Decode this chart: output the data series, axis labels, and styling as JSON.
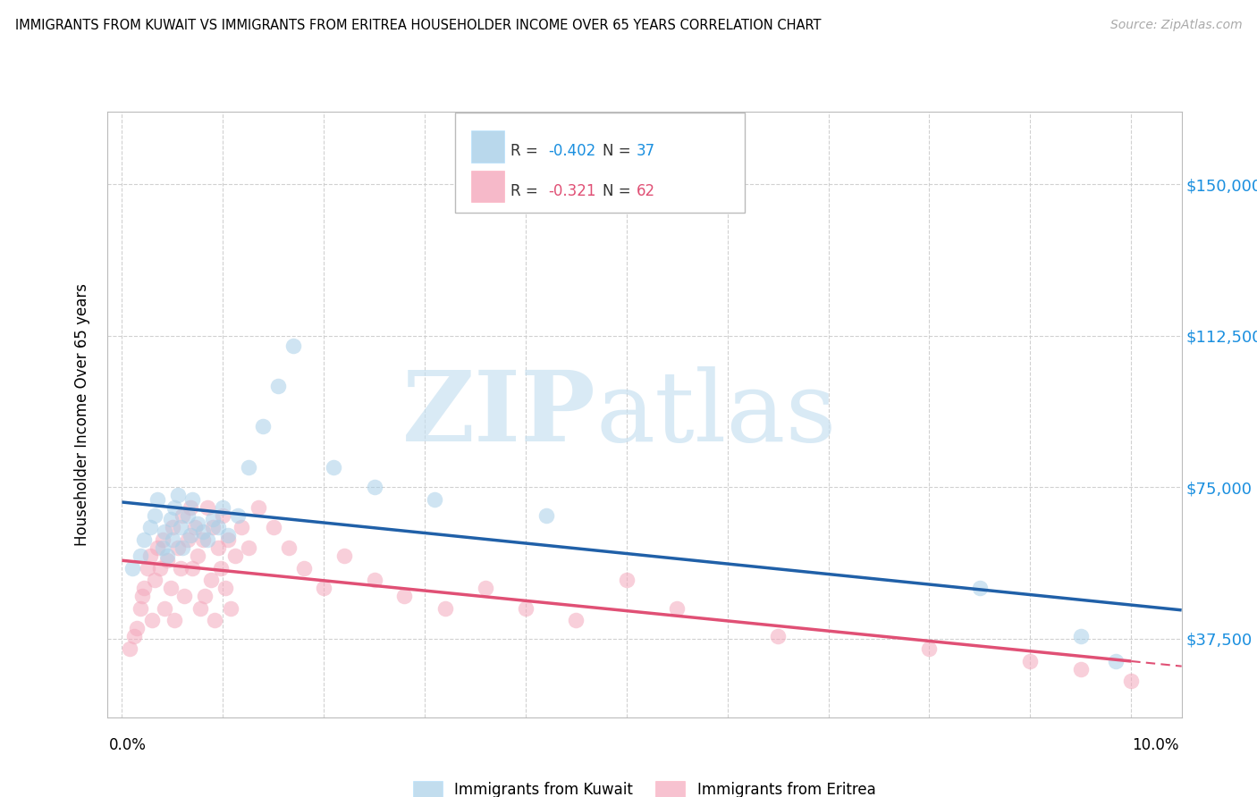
{
  "title": "IMMIGRANTS FROM KUWAIT VS IMMIGRANTS FROM ERITREA HOUSEHOLDER INCOME OVER 65 YEARS CORRELATION CHART",
  "source": "Source: ZipAtlas.com",
  "ylabel": "Householder Income Over 65 years",
  "xlim": [
    -0.15,
    10.5
  ],
  "ylim": [
    18000,
    168000
  ],
  "yticks": [
    37500,
    75000,
    112500,
    150000
  ],
  "ytick_labels": [
    "$37,500",
    "$75,000",
    "$112,500",
    "$150,000"
  ],
  "color_kuwait": "#a8cfe8",
  "color_eritrea": "#f4a8bc",
  "line_color_kuwait": "#2060a8",
  "line_color_eritrea": "#e05075",
  "kuwait_x": [
    0.1,
    0.18,
    0.22,
    0.28,
    0.32,
    0.35,
    0.4,
    0.42,
    0.45,
    0.48,
    0.5,
    0.52,
    0.55,
    0.58,
    0.6,
    0.65,
    0.68,
    0.7,
    0.75,
    0.8,
    0.85,
    0.9,
    0.95,
    1.0,
    1.05,
    1.15,
    1.25,
    1.4,
    1.55,
    1.7,
    2.1,
    2.5,
    3.1,
    4.2,
    8.5,
    9.5,
    9.85
  ],
  "kuwait_y": [
    55000,
    58000,
    62000,
    65000,
    68000,
    72000,
    60000,
    64000,
    58000,
    67000,
    62000,
    70000,
    73000,
    65000,
    60000,
    68000,
    63000,
    72000,
    66000,
    64000,
    62000,
    67000,
    65000,
    70000,
    63000,
    68000,
    80000,
    90000,
    100000,
    110000,
    80000,
    75000,
    72000,
    68000,
    50000,
    38000,
    32000
  ],
  "eritrea_x": [
    0.08,
    0.12,
    0.15,
    0.18,
    0.2,
    0.22,
    0.25,
    0.28,
    0.3,
    0.32,
    0.35,
    0.38,
    0.4,
    0.42,
    0.45,
    0.48,
    0.5,
    0.52,
    0.55,
    0.58,
    0.6,
    0.62,
    0.65,
    0.68,
    0.7,
    0.72,
    0.75,
    0.78,
    0.8,
    0.82,
    0.85,
    0.88,
    0.9,
    0.92,
    0.95,
    0.98,
    1.0,
    1.02,
    1.05,
    1.08,
    1.12,
    1.18,
    1.25,
    1.35,
    1.5,
    1.65,
    1.8,
    2.0,
    2.2,
    2.5,
    2.8,
    3.2,
    3.6,
    4.0,
    4.5,
    5.0,
    5.5,
    6.5,
    8.0,
    9.0,
    9.5,
    10.0
  ],
  "eritrea_y": [
    35000,
    38000,
    40000,
    45000,
    48000,
    50000,
    55000,
    58000,
    42000,
    52000,
    60000,
    55000,
    62000,
    45000,
    57000,
    50000,
    65000,
    42000,
    60000,
    55000,
    68000,
    48000,
    62000,
    70000,
    55000,
    65000,
    58000,
    45000,
    62000,
    48000,
    70000,
    52000,
    65000,
    42000,
    60000,
    55000,
    68000,
    50000,
    62000,
    45000,
    58000,
    65000,
    60000,
    70000,
    65000,
    60000,
    55000,
    50000,
    58000,
    52000,
    48000,
    45000,
    50000,
    45000,
    42000,
    52000,
    45000,
    38000,
    35000,
    32000,
    30000,
    27000
  ]
}
